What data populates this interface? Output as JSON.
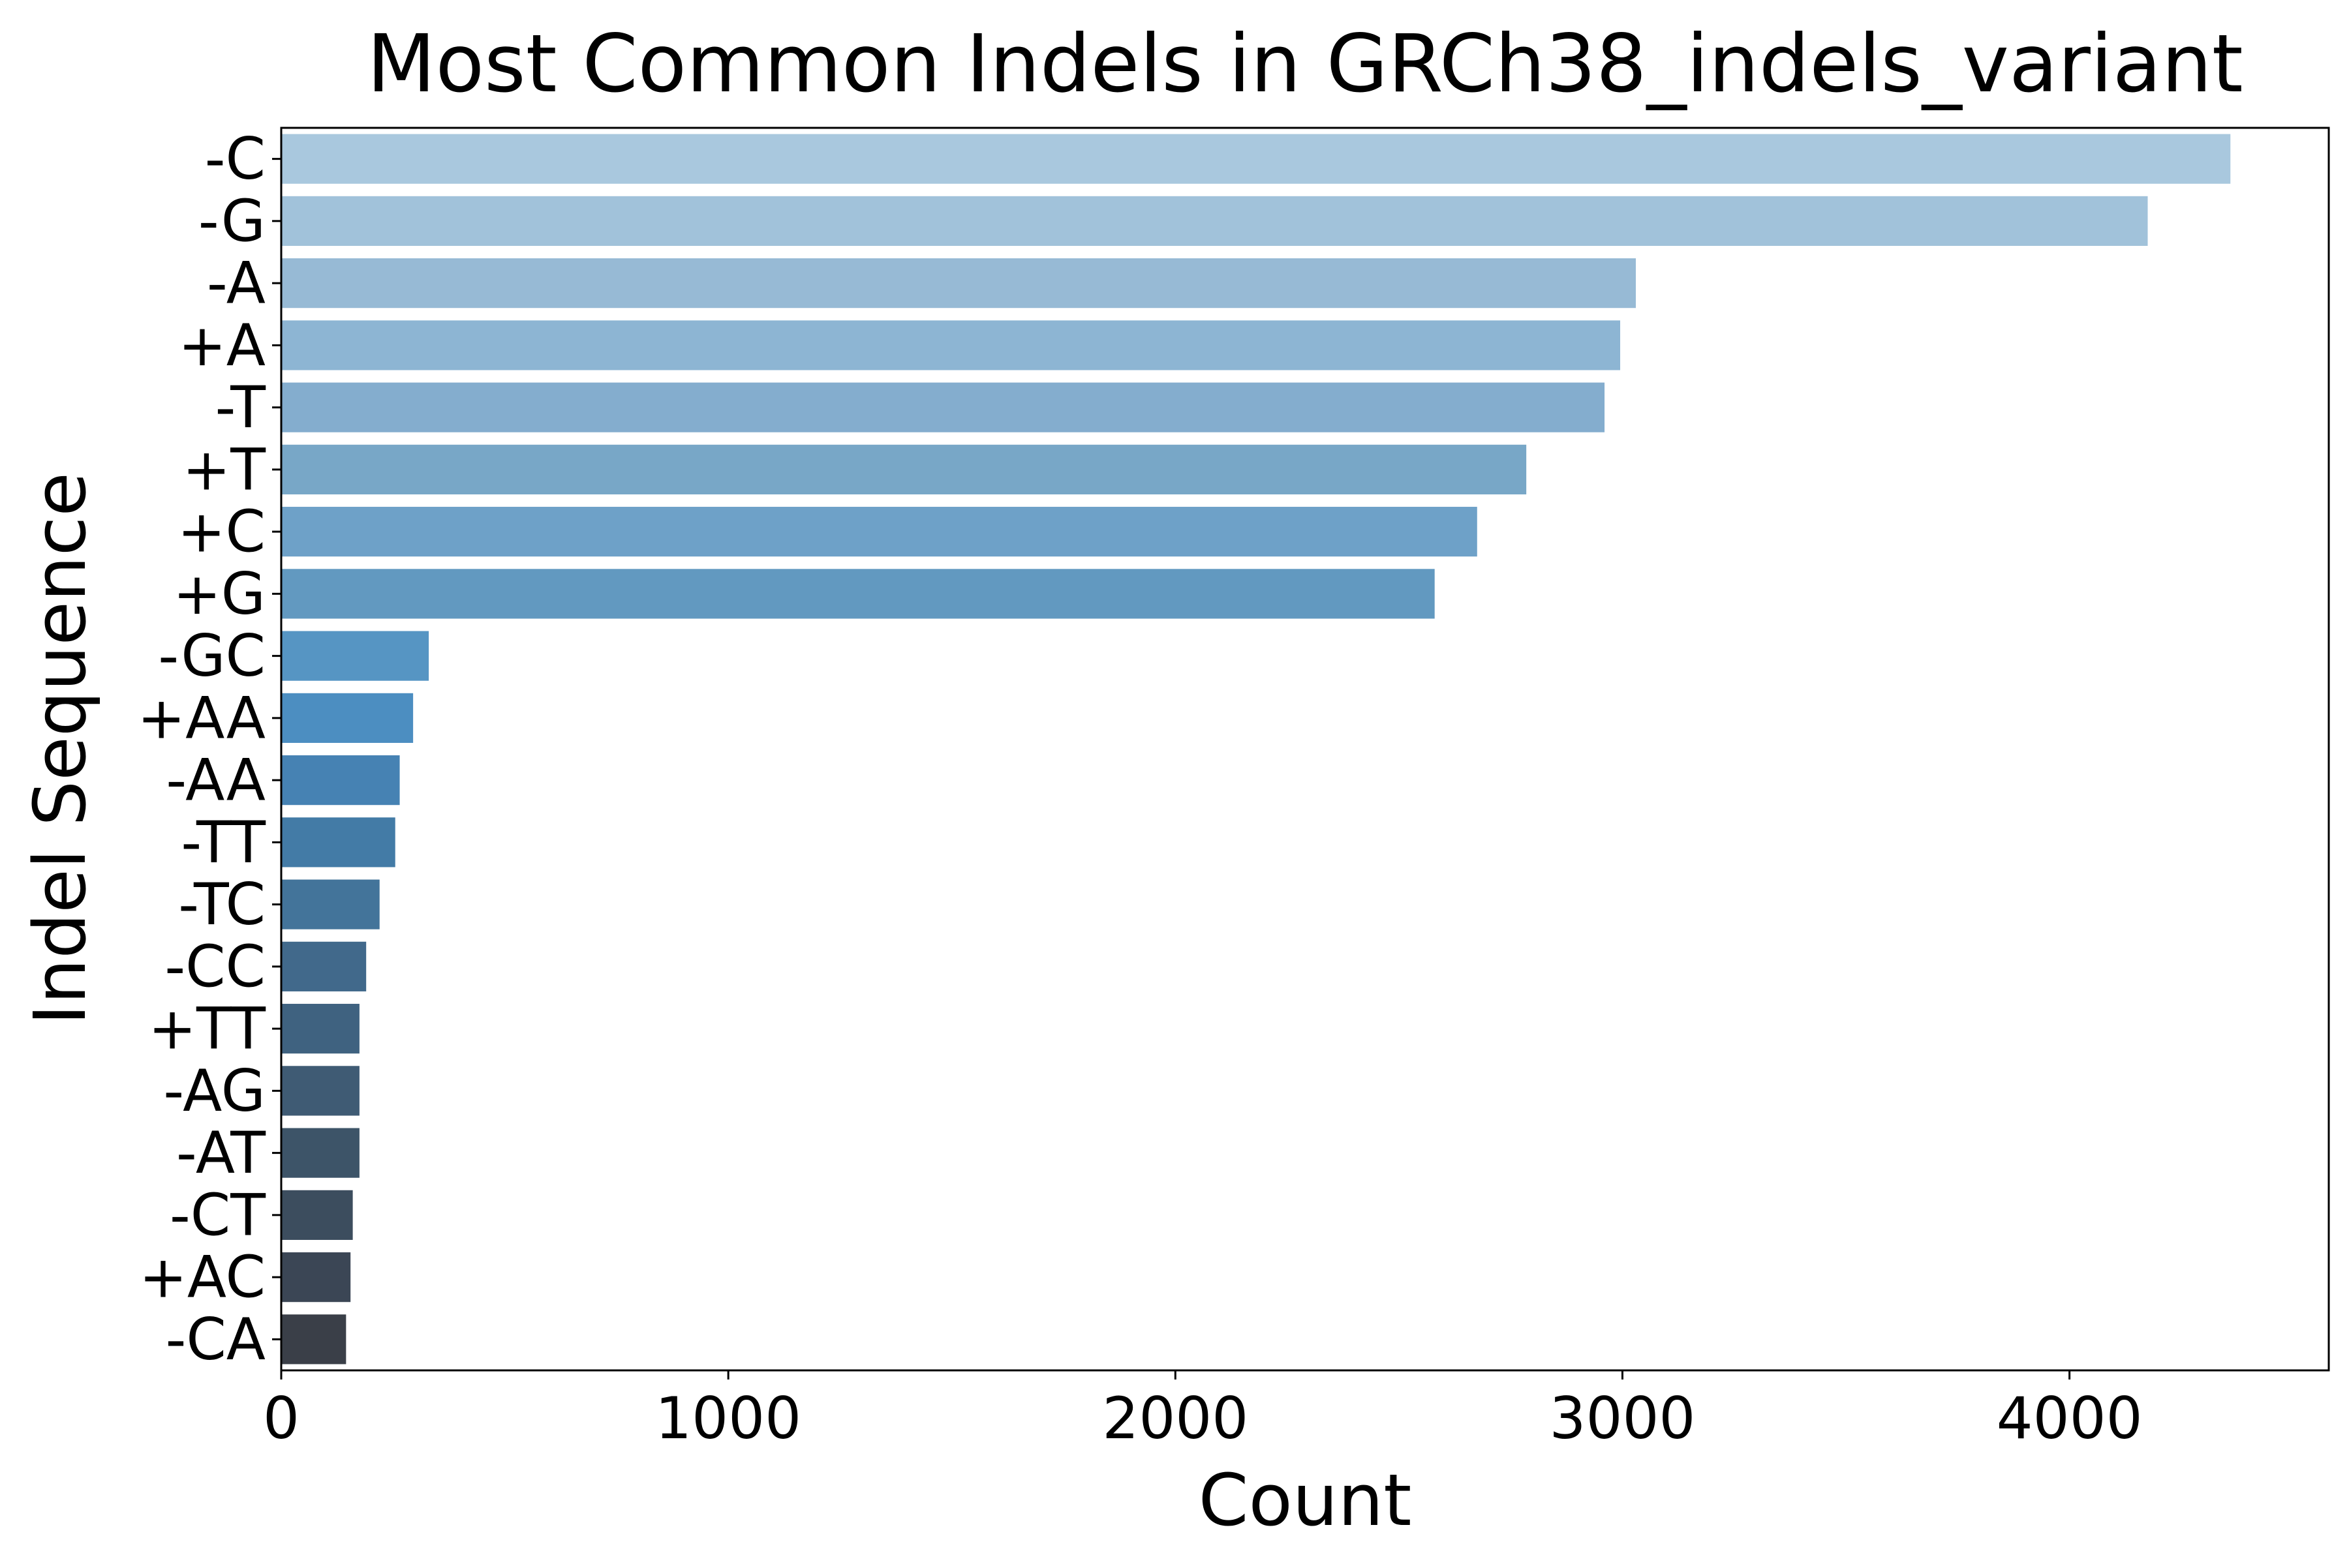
{
  "chart_data": {
    "type": "bar",
    "orientation": "horizontal",
    "title": "Most Common Indels in GRCh38_indels_variant",
    "xlabel": "Count",
    "ylabel": "Indel Sequence",
    "xlim": [
      0,
      4580
    ],
    "xticks": [
      0,
      1000,
      2000,
      3000,
      4000
    ],
    "grid": false,
    "legend": "none",
    "categories": [
      "-C",
      "-G",
      "-A",
      "+A",
      "-T",
      "+T",
      "+C",
      "+G",
      "-GC",
      "+AA",
      "-AA",
      "-TT",
      "-TC",
      "-CC",
      "+TT",
      "-AG",
      "-AT",
      "-CT",
      "+AC",
      "-CA"
    ],
    "values": [
      4360,
      4175,
      3030,
      2995,
      2960,
      2785,
      2675,
      2580,
      330,
      295,
      265,
      255,
      220,
      190,
      175,
      175,
      175,
      160,
      155,
      145
    ],
    "colors": [
      "#a9c8de",
      "#a1c2da",
      "#97bad5",
      "#8db5d3",
      "#84adce",
      "#78a7c7",
      "#6ea1c8",
      "#6299c0",
      "#5695c3",
      "#4c8ec1",
      "#4682b3",
      "#437ba6",
      "#43749a",
      "#41698b",
      "#3f6280",
      "#3f5b74",
      "#3d5468",
      "#3c4d5e",
      "#3b4655",
      "#3a3f48"
    ]
  }
}
